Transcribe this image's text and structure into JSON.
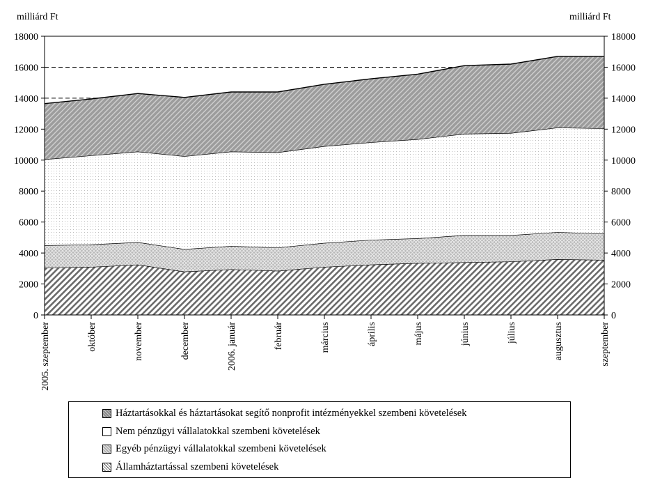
{
  "chart_data": {
    "type": "area",
    "stacked": true,
    "left_unit": "milliárd Ft",
    "right_unit": "milliárd Ft",
    "categories": [
      "2005. szeptember",
      "október",
      "november",
      "december",
      "2006. január",
      "február",
      "március",
      "április",
      "május",
      "június",
      "július",
      "augusztus",
      "szeptember"
    ],
    "ylim": [
      0,
      18000
    ],
    "yticks": [
      0,
      2000,
      4000,
      6000,
      8000,
      10000,
      12000,
      14000,
      16000,
      18000
    ],
    "reference_lines": [
      14000,
      16000
    ],
    "grid": false,
    "series": [
      {
        "name": "Államháztartással szembeni követelések",
        "pattern": "diagonal-lines",
        "values": [
          3050,
          3100,
          3250,
          2800,
          2950,
          2850,
          3100,
          3250,
          3350,
          3400,
          3450,
          3600,
          3550
        ]
      },
      {
        "name": "Egyéb pénzügyi vállalatokkal szembeni követelések",
        "pattern": "crosshatch",
        "values": [
          1450,
          1450,
          1450,
          1450,
          1500,
          1500,
          1550,
          1600,
          1600,
          1750,
          1700,
          1750,
          1700
        ]
      },
      {
        "name": "Nem pénzügyi vállalatokkal szembeni követelések",
        "pattern": "fine-dots",
        "values": [
          5550,
          5750,
          5850,
          6000,
          6100,
          6150,
          6250,
          6300,
          6400,
          6550,
          6600,
          6750,
          6800
        ]
      },
      {
        "name": "Háztartásokkal és háztartásokat segítő nonprofit intézményekkel szembeni követelések",
        "pattern": "dark-hatch",
        "values": [
          3600,
          3650,
          3750,
          3800,
          3850,
          3900,
          4000,
          4100,
          4200,
          4400,
          4450,
          4600,
          4650
        ]
      }
    ],
    "legend_order": [
      3,
      2,
      1,
      0
    ],
    "legend_position": "bottom"
  }
}
